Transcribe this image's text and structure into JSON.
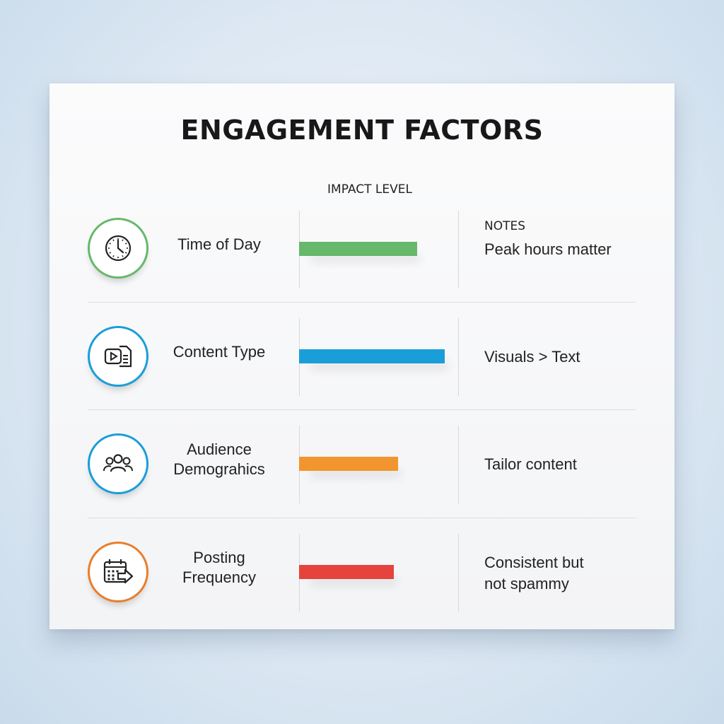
{
  "title": "ENGAGEMENT FACTORS",
  "columns": {
    "impact": "IMPACT LEVEL",
    "notes": "NOTES"
  },
  "chart_data": {
    "type": "bar",
    "orientation": "horizontal",
    "title": "ENGAGEMENT FACTORS",
    "categories": [
      "Time of Day",
      "Content Type",
      "Audience Demograhics",
      "Posting Frequency"
    ],
    "values": [
      0.81,
      1.0,
      0.68,
      0.65
    ],
    "value_scale": "relative impact (no numeric axis shown)",
    "colors": [
      "#66b86b",
      "#1a9ed8",
      "#f2952e",
      "#e5433c"
    ],
    "notes": [
      "Peak hours matter",
      "Visuals > Text",
      "Tailor content",
      "Consistent but not spammy"
    ],
    "grid": false,
    "legend": "none"
  },
  "rows": [
    {
      "label_lines": [
        "Time of Day"
      ],
      "note_lines": [
        "Peak hours matter"
      ],
      "icon": "clock-icon",
      "color": "#66b86b",
      "impact": 0.81
    },
    {
      "label_lines": [
        "Content Type"
      ],
      "note_lines": [
        "Visuals > Text"
      ],
      "icon": "video-document-icon",
      "color": "#1a9ed8",
      "impact": 1.0
    },
    {
      "label_lines": [
        "Audience",
        "Demograhics"
      ],
      "note_lines": [
        "Tailor content"
      ],
      "icon": "people-icon",
      "color": "#f2952e",
      "impact": 0.68
    },
    {
      "label_lines": [
        "Posting",
        "Frequency"
      ],
      "note_lines": [
        "Consistent but",
        "not spammy"
      ],
      "icon": "calendar-arrow-icon",
      "color": "#e5433c",
      "impact": 0.65
    }
  ],
  "icon_colors": [
    "#66b86b",
    "#1a9ed8",
    "#1a9ed8",
    "#ea7d2c"
  ]
}
